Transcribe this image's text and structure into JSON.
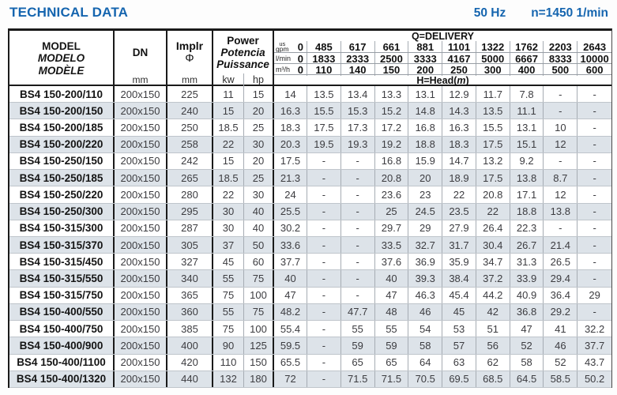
{
  "header": {
    "title": "TECHNICAL DATA",
    "frequency": "50 Hz",
    "speed": "n=1450 1/min"
  },
  "colors": {
    "accent_blue": "#1565af",
    "stripe": "#dde3e9"
  },
  "table": {
    "columns": {
      "model": {
        "lines": [
          "MODEL",
          "MODELO",
          "MODÈLE"
        ]
      },
      "dn": {
        "label": "DN",
        "unit": "mm"
      },
      "impeller": {
        "label": "Implr",
        "symbol": "Φ",
        "unit": "mm"
      },
      "power": {
        "lines": [
          "Power",
          "Potencia",
          "Puissance"
        ],
        "units": [
          "kw",
          "hp"
        ]
      }
    },
    "delivery": {
      "title": "Q=DELIVERY",
      "unit_rows": [
        {
          "unit_top": "us",
          "unit": "gpm",
          "zero": "0",
          "values": [
            "485",
            "617",
            "661",
            "881",
            "1101",
            "1322",
            "1762",
            "2203",
            "2643"
          ]
        },
        {
          "unit": "l/min",
          "zero": "0",
          "values": [
            "1833",
            "2333",
            "2500",
            "3333",
            "4167",
            "5000",
            "6667",
            "8333",
            "10000"
          ]
        },
        {
          "unit": "m³/h",
          "zero": "0",
          "values": [
            "110",
            "140",
            "150",
            "200",
            "250",
            "300",
            "400",
            "500",
            "600"
          ]
        }
      ],
      "head_title": {
        "prefix": "H=Head(",
        "italic": "m",
        "suffix": ")"
      }
    },
    "rows": [
      {
        "model": "BS4 150-200/110",
        "dn": "200x150",
        "impeller": "225",
        "kw": "11",
        "hp": "15",
        "head": [
          "14",
          "13.5",
          "13.4",
          "13.3",
          "13.1",
          "12.9",
          "11.7",
          "7.8",
          "-",
          "-"
        ]
      },
      {
        "model": "BS4 150-200/150",
        "dn": "200x150",
        "impeller": "240",
        "kw": "15",
        "hp": "20",
        "head": [
          "16.3",
          "15.5",
          "15.3",
          "15.2",
          "14.8",
          "14.3",
          "13.5",
          "11.1",
          "-",
          "-"
        ]
      },
      {
        "model": "BS4 150-200/185",
        "dn": "200x150",
        "impeller": "250",
        "kw": "18.5",
        "hp": "25",
        "head": [
          "18.3",
          "17.5",
          "17.3",
          "17.2",
          "16.8",
          "16.3",
          "15.5",
          "13.1",
          "10",
          "-"
        ]
      },
      {
        "model": "BS4 150-200/220",
        "dn": "200x150",
        "impeller": "258",
        "kw": "22",
        "hp": "30",
        "head": [
          "20.3",
          "19.5",
          "19.3",
          "19.2",
          "18.8",
          "18.3",
          "17.5",
          "15.1",
          "12",
          "-"
        ]
      },
      {
        "model": "BS4 150-250/150",
        "dn": "200x150",
        "impeller": "242",
        "kw": "15",
        "hp": "20",
        "head": [
          "17.5",
          "-",
          "-",
          "16.8",
          "15.9",
          "14.7",
          "13.2",
          "9.2",
          "-",
          "-"
        ]
      },
      {
        "model": "BS4 150-250/185",
        "dn": "200x150",
        "impeller": "265",
        "kw": "18.5",
        "hp": "25",
        "head": [
          "21.3",
          "-",
          "-",
          "20.8",
          "20",
          "18.9",
          "17.5",
          "13.8",
          "8.7",
          "-"
        ]
      },
      {
        "model": "BS4 150-250/220",
        "dn": "200x150",
        "impeller": "280",
        "kw": "22",
        "hp": "30",
        "head": [
          "24",
          "-",
          "-",
          "23.6",
          "23",
          "22",
          "20.8",
          "17.1",
          "12",
          "-"
        ]
      },
      {
        "model": "BS4 150-250/300",
        "dn": "200x150",
        "impeller": "295",
        "kw": "30",
        "hp": "40",
        "head": [
          "25.5",
          "-",
          "-",
          "25",
          "24.5",
          "23.5",
          "22",
          "18.8",
          "13.8",
          "-"
        ]
      },
      {
        "model": "BS4 150-315/300",
        "dn": "200x150",
        "impeller": "287",
        "kw": "30",
        "hp": "40",
        "head": [
          "30.2",
          "-",
          "-",
          "29.7",
          "29",
          "27.9",
          "26.4",
          "22.3",
          "-",
          "-"
        ]
      },
      {
        "model": "BS4 150-315/370",
        "dn": "200x150",
        "impeller": "305",
        "kw": "37",
        "hp": "50",
        "head": [
          "33.6",
          "-",
          "-",
          "33.5",
          "32.7",
          "31.7",
          "30.4",
          "26.7",
          "21.4",
          "-"
        ]
      },
      {
        "model": "BS4 150-315/450",
        "dn": "200x150",
        "impeller": "327",
        "kw": "45",
        "hp": "60",
        "head": [
          "37.7",
          "-",
          "-",
          "37.6",
          "36.9",
          "35.9",
          "34.7",
          "31.3",
          "26.5",
          "-"
        ]
      },
      {
        "model": "BS4 150-315/550",
        "dn": "200x150",
        "impeller": "340",
        "kw": "55",
        "hp": "75",
        "head": [
          "40",
          "-",
          "-",
          "40",
          "39.3",
          "38.4",
          "37.2",
          "33.9",
          "29.4",
          "-"
        ]
      },
      {
        "model": "BS4 150-315/750",
        "dn": "200x150",
        "impeller": "365",
        "kw": "75",
        "hp": "100",
        "head": [
          "47",
          "-",
          "-",
          "47",
          "46.3",
          "45.4",
          "44.2",
          "40.9",
          "36.4",
          "29"
        ]
      },
      {
        "model": "BS4 150-400/550",
        "dn": "200x150",
        "impeller": "360",
        "kw": "55",
        "hp": "75",
        "head": [
          "48.2",
          "-",
          "47.7",
          "48",
          "46",
          "45",
          "42",
          "36.8",
          "29.2",
          "-"
        ]
      },
      {
        "model": "BS4 150-400/750",
        "dn": "200x150",
        "impeller": "385",
        "kw": "75",
        "hp": "100",
        "head": [
          "55.4",
          "-",
          "55",
          "55",
          "54",
          "53",
          "51",
          "47",
          "41",
          "32.2"
        ]
      },
      {
        "model": "BS4 150-400/900",
        "dn": "200x150",
        "impeller": "400",
        "kw": "90",
        "hp": "125",
        "head": [
          "59.5",
          "-",
          "59",
          "59",
          "58",
          "57",
          "56",
          "52",
          "46",
          "37.7"
        ]
      },
      {
        "model": "BS4 150-400/1100",
        "dn": "200x150",
        "impeller": "420",
        "kw": "110",
        "hp": "150",
        "head": [
          "65.5",
          "-",
          "65",
          "65",
          "64",
          "63",
          "62",
          "58",
          "52",
          "43.7"
        ]
      },
      {
        "model": "BS4 150-400/1320",
        "dn": "200x150",
        "impeller": "440",
        "kw": "132",
        "hp": "180",
        "head": [
          "72",
          "-",
          "71.5",
          "71.5",
          "70.5",
          "69.5",
          "68.5",
          "64.5",
          "58.5",
          "50.2"
        ]
      }
    ]
  }
}
